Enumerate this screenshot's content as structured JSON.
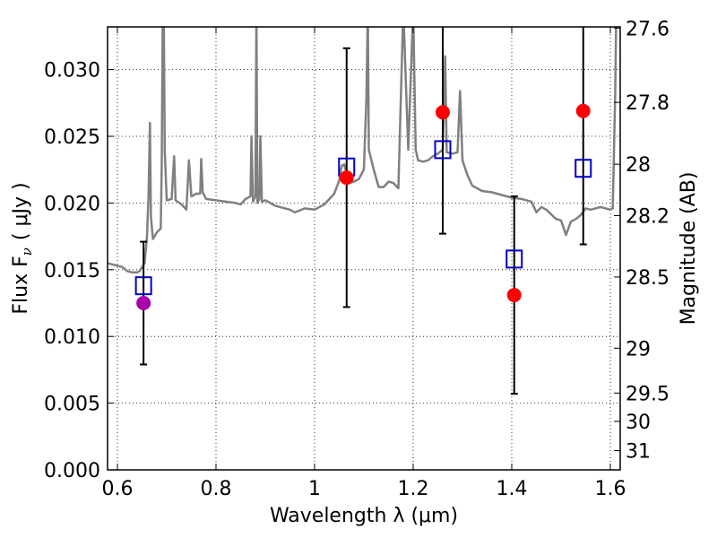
{
  "chart_data": {
    "type": "scatter",
    "xlabel": "Wavelength  λ (μm)",
    "ylabel": "Flux  F",
    "ylabel_subscript": "ν",
    "ylabel_unit": "( μJy )",
    "y2label": "Magnitude (AB)",
    "xlim": [
      0.58,
      1.62
    ],
    "ylim": [
      0.0,
      0.0332
    ],
    "grid": true,
    "x_ticks": [
      {
        "value": 0.6,
        "label": "0.6"
      },
      {
        "value": 0.8,
        "label": "0.8"
      },
      {
        "value": 1.0,
        "label": "1"
      },
      {
        "value": 1.2,
        "label": "1.2"
      },
      {
        "value": 1.4,
        "label": "1.4"
      },
      {
        "value": 1.6,
        "label": "1.6"
      }
    ],
    "y_ticks": [
      {
        "value": 0.0,
        "label": "0.000"
      },
      {
        "value": 0.005,
        "label": "0.005"
      },
      {
        "value": 0.01,
        "label": "0.010"
      },
      {
        "value": 0.015,
        "label": "0.015"
      },
      {
        "value": 0.02,
        "label": "0.020"
      },
      {
        "value": 0.025,
        "label": "0.025"
      },
      {
        "value": 0.03,
        "label": "0.030"
      }
    ],
    "y2_ticks": [
      {
        "value": 27.6,
        "label": "27.6"
      },
      {
        "value": 27.8,
        "label": "27.8"
      },
      {
        "value": 28.0,
        "label": "28"
      },
      {
        "value": 28.2,
        "label": "28.2"
      },
      {
        "value": 28.5,
        "label": "28.5"
      },
      {
        "value": 29.0,
        "label": "29"
      },
      {
        "value": 29.5,
        "label": "29.5"
      },
      {
        "value": 30.0,
        "label": "30"
      },
      {
        "value": 31.0,
        "label": "31"
      }
    ],
    "series": [
      {
        "kind": "line",
        "color": "#808080",
        "points": [
          [
            0.58,
            0.0155
          ],
          [
            0.59,
            0.0154
          ],
          [
            0.6,
            0.0153
          ],
          [
            0.61,
            0.0152
          ],
          [
            0.62,
            0.0149
          ],
          [
            0.63,
            0.0148
          ],
          [
            0.64,
            0.0148
          ],
          [
            0.645,
            0.0149
          ],
          [
            0.65,
            0.0152
          ],
          [
            0.655,
            0.0155
          ],
          [
            0.66,
            0.0175
          ],
          [
            0.663,
            0.0205
          ],
          [
            0.666,
            0.026
          ],
          [
            0.668,
            0.019
          ],
          [
            0.672,
            0.0173
          ],
          [
            0.68,
            0.0178
          ],
          [
            0.688,
            0.0181
          ],
          [
            0.69,
            0.023
          ],
          [
            0.692,
            0.0345
          ],
          [
            0.694,
            0.0345
          ],
          [
            0.696,
            0.024
          ],
          [
            0.7,
            0.0202
          ],
          [
            0.71,
            0.0203
          ],
          [
            0.715,
            0.0235
          ],
          [
            0.718,
            0.0202
          ],
          [
            0.73,
            0.0199
          ],
          [
            0.74,
            0.0195
          ],
          [
            0.745,
            0.0232
          ],
          [
            0.75,
            0.0205
          ],
          [
            0.76,
            0.0207
          ],
          [
            0.768,
            0.0207
          ],
          [
            0.77,
            0.0233
          ],
          [
            0.773,
            0.0208
          ],
          [
            0.78,
            0.0203
          ],
          [
            0.8,
            0.0202
          ],
          [
            0.82,
            0.0201
          ],
          [
            0.84,
            0.02
          ],
          [
            0.85,
            0.0199
          ],
          [
            0.86,
            0.0203
          ],
          [
            0.87,
            0.0205
          ],
          [
            0.872,
            0.025
          ],
          [
            0.875,
            0.0201
          ],
          [
            0.88,
            0.0205
          ],
          [
            0.882,
            0.0345
          ],
          [
            0.884,
            0.02
          ],
          [
            0.888,
            0.0203
          ],
          [
            0.89,
            0.025
          ],
          [
            0.893,
            0.0201
          ],
          [
            0.9,
            0.0202
          ],
          [
            0.92,
            0.0198
          ],
          [
            0.94,
            0.0196
          ],
          [
            0.95,
            0.0195
          ],
          [
            0.96,
            0.0193
          ],
          [
            0.98,
            0.0196
          ],
          [
            1.0,
            0.0195
          ],
          [
            1.02,
            0.0199
          ],
          [
            1.04,
            0.0207
          ],
          [
            1.05,
            0.0217
          ],
          [
            1.055,
            0.0228
          ],
          [
            1.06,
            0.0229
          ],
          [
            1.07,
            0.0215
          ],
          [
            1.08,
            0.0216
          ],
          [
            1.09,
            0.0218
          ],
          [
            1.1,
            0.0225
          ],
          [
            1.105,
            0.0278
          ],
          [
            1.108,
            0.0345
          ],
          [
            1.11,
            0.024
          ],
          [
            1.12,
            0.0225
          ],
          [
            1.13,
            0.0212
          ],
          [
            1.14,
            0.0212
          ],
          [
            1.15,
            0.0216
          ],
          [
            1.16,
            0.0215
          ],
          [
            1.17,
            0.0211
          ],
          [
            1.175,
            0.028
          ],
          [
            1.18,
            0.0345
          ],
          [
            1.19,
            0.024
          ],
          [
            1.2,
            0.0345
          ],
          [
            1.205,
            0.024
          ],
          [
            1.21,
            0.0232
          ],
          [
            1.22,
            0.0231
          ],
          [
            1.23,
            0.0232
          ],
          [
            1.24,
            0.0235
          ],
          [
            1.25,
            0.0237
          ],
          [
            1.26,
            0.024
          ],
          [
            1.265,
            0.031
          ],
          [
            1.268,
            0.0238
          ],
          [
            1.28,
            0.0237
          ],
          [
            1.29,
            0.0238
          ],
          [
            1.295,
            0.0284
          ],
          [
            1.3,
            0.0232
          ],
          [
            1.31,
            0.0221
          ],
          [
            1.32,
            0.0213
          ],
          [
            1.34,
            0.0209
          ],
          [
            1.36,
            0.0208
          ],
          [
            1.38,
            0.0206
          ],
          [
            1.4,
            0.0204
          ],
          [
            1.42,
            0.0203
          ],
          [
            1.44,
            0.0201
          ],
          [
            1.45,
            0.0193
          ],
          [
            1.46,
            0.0197
          ],
          [
            1.47,
            0.0195
          ],
          [
            1.49,
            0.0188
          ],
          [
            1.5,
            0.0187
          ],
          [
            1.51,
            0.0176
          ],
          [
            1.52,
            0.0186
          ],
          [
            1.53,
            0.0188
          ],
          [
            1.54,
            0.0191
          ],
          [
            1.55,
            0.0196
          ],
          [
            1.56,
            0.0195
          ],
          [
            1.58,
            0.0197
          ],
          [
            1.6,
            0.0195
          ],
          [
            1.605,
            0.0196
          ],
          [
            1.61,
            0.0285
          ],
          [
            1.612,
            0.0345
          ],
          [
            1.615,
            0.0345
          ],
          [
            1.62,
            0.0345
          ]
        ]
      },
      {
        "kind": "errorbar",
        "color": "#000000",
        "points": [
          {
            "x": 0.653,
            "low": 0.0079,
            "high": 0.0171
          },
          {
            "x": 1.065,
            "low": 0.0122,
            "high": 0.0316
          },
          {
            "x": 1.26,
            "low": 0.0177,
            "high": 0.0345
          },
          {
            "x": 1.405,
            "low": 0.0057,
            "high": 0.0205
          },
          {
            "x": 1.545,
            "low": 0.0169,
            "high": 0.0345
          }
        ]
      },
      {
        "kind": "model-squares",
        "color": "#0000cc",
        "points": [
          {
            "x": 0.653,
            "y": 0.0138
          },
          {
            "x": 1.065,
            "y": 0.0227
          },
          {
            "x": 1.26,
            "y": 0.024
          },
          {
            "x": 1.405,
            "y": 0.0158
          },
          {
            "x": 1.545,
            "y": 0.0226
          }
        ]
      },
      {
        "kind": "observed-points",
        "points": [
          {
            "x": 0.653,
            "y": 0.0125,
            "color": "#aa00aa"
          },
          {
            "x": 1.065,
            "y": 0.0219,
            "color": "#ff0000"
          },
          {
            "x": 1.26,
            "y": 0.0268,
            "color": "#ff0000"
          },
          {
            "x": 1.405,
            "y": 0.0131,
            "color": "#ff0000"
          },
          {
            "x": 1.545,
            "y": 0.0269,
            "color": "#ff0000"
          }
        ]
      }
    ]
  }
}
